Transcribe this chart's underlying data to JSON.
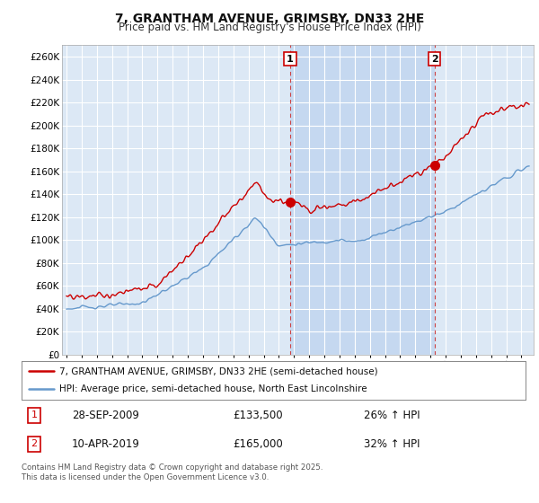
{
  "title": "7, GRANTHAM AVENUE, GRIMSBY, DN33 2HE",
  "subtitle": "Price paid vs. HM Land Registry's House Price Index (HPI)",
  "ylabel_ticks": [
    "£0",
    "£20K",
    "£40K",
    "£60K",
    "£80K",
    "£100K",
    "£120K",
    "£140K",
    "£160K",
    "£180K",
    "£200K",
    "£220K",
    "£240K",
    "£260K"
  ],
  "ytick_values": [
    0,
    20000,
    40000,
    60000,
    80000,
    100000,
    120000,
    140000,
    160000,
    180000,
    200000,
    220000,
    240000,
    260000
  ],
  "ylim": [
    0,
    270000
  ],
  "year_start": 1995,
  "year_end": 2025,
  "marker1_year": 2009.75,
  "marker1_value": 133500,
  "marker1_label": "1",
  "marker1_date": "28-SEP-2009",
  "marker1_price": "£133,500",
  "marker1_hpi": "26% ↑ HPI",
  "marker2_year": 2019.27,
  "marker2_value": 165000,
  "marker2_label": "2",
  "marker2_date": "10-APR-2019",
  "marker2_price": "£165,000",
  "marker2_hpi": "32% ↑ HPI",
  "legend_line1": "7, GRANTHAM AVENUE, GRIMSBY, DN33 2HE (semi-detached house)",
  "legend_line2": "HPI: Average price, semi-detached house, North East Lincolnshire",
  "footer": "Contains HM Land Registry data © Crown copyright and database right 2025.\nThis data is licensed under the Open Government Licence v3.0.",
  "line_color_red": "#cc0000",
  "line_color_blue": "#6699cc",
  "bg_color": "#dce8f5",
  "highlight_color": "#c5d8f0",
  "grid_color": "#c8d8e8",
  "vline_color": "#cc4444",
  "fig_bg": "#f0f0f0"
}
